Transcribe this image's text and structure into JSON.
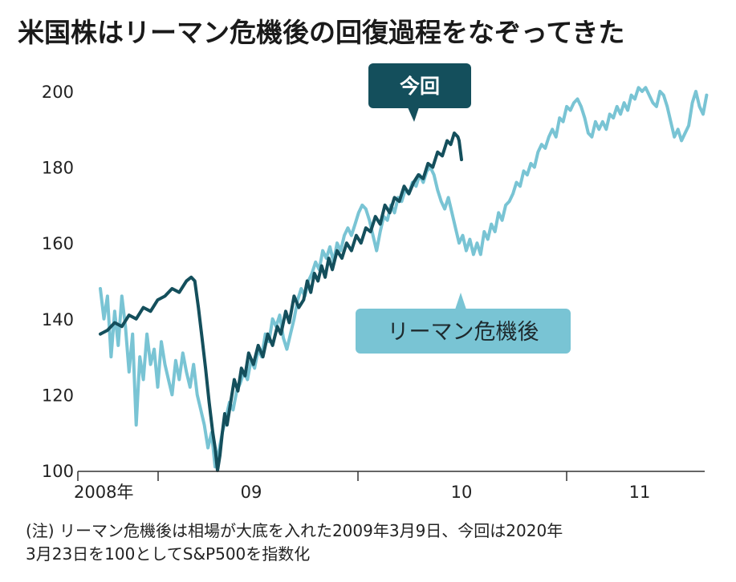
{
  "chart_data": {
    "type": "line",
    "title": "米国株はリーマン危機後の回復過程をなぞってきた",
    "x_tick_labels": [
      "2008年",
      "09",
      "10",
      "11"
    ],
    "y_ticks": [
      100,
      120,
      140,
      160,
      180,
      200
    ],
    "ylim": [
      100,
      205
    ],
    "x_domain_months": [
      0,
      39
    ],
    "grid": false,
    "series": [
      {
        "name": "今回",
        "color": "#144f5c",
        "points": [
          [
            0,
            136
          ],
          [
            0.6,
            137
          ],
          [
            1.2,
            139
          ],
          [
            1.8,
            138
          ],
          [
            2.4,
            141
          ],
          [
            3,
            140
          ],
          [
            3.6,
            143
          ],
          [
            4.2,
            142
          ],
          [
            4.8,
            145
          ],
          [
            5.4,
            146
          ],
          [
            6,
            148
          ],
          [
            6.6,
            147
          ],
          [
            7.2,
            150
          ],
          [
            7.6,
            151
          ],
          [
            7.9,
            150
          ],
          [
            8.2,
            143
          ],
          [
            8.5,
            135
          ],
          [
            8.8,
            127
          ],
          [
            9.1,
            118
          ],
          [
            9.4,
            110
          ],
          [
            9.6,
            106
          ],
          [
            9.8,
            100
          ],
          [
            10.0,
            104
          ],
          [
            10.2,
            110
          ],
          [
            10.4,
            115
          ],
          [
            10.6,
            112
          ],
          [
            10.9,
            118
          ],
          [
            11.2,
            124
          ],
          [
            11.5,
            121
          ],
          [
            11.8,
            127
          ],
          [
            12.1,
            125
          ],
          [
            12.4,
            131
          ],
          [
            12.8,
            128
          ],
          [
            13.2,
            133
          ],
          [
            13.6,
            130
          ],
          [
            14,
            136
          ],
          [
            14.4,
            133
          ],
          [
            14.8,
            138
          ],
          [
            15.1,
            136
          ],
          [
            15.5,
            142
          ],
          [
            15.8,
            139
          ],
          [
            16.2,
            146
          ],
          [
            16.6,
            143
          ],
          [
            17,
            145
          ],
          [
            17.3,
            150
          ],
          [
            17.6,
            147
          ],
          [
            17.9,
            152
          ],
          [
            18.2,
            150
          ],
          [
            18.5,
            154
          ],
          [
            18.8,
            151
          ],
          [
            19.1,
            156
          ],
          [
            19.4,
            153
          ],
          [
            19.8,
            158
          ],
          [
            20.2,
            156
          ],
          [
            20.6,
            160
          ],
          [
            21,
            158
          ],
          [
            21.4,
            162
          ],
          [
            21.8,
            160
          ],
          [
            22.2,
            164
          ],
          [
            22.6,
            163
          ],
          [
            23,
            167
          ],
          [
            23.4,
            165
          ],
          [
            23.8,
            170
          ],
          [
            24.2,
            168
          ],
          [
            24.6,
            172
          ],
          [
            25.0,
            171
          ],
          [
            25.4,
            175
          ],
          [
            25.8,
            173
          ],
          [
            26.2,
            176
          ],
          [
            26.6,
            178
          ],
          [
            27,
            177
          ],
          [
            27.4,
            181
          ],
          [
            27.8,
            180
          ],
          [
            28.2,
            184
          ],
          [
            28.6,
            183
          ],
          [
            29.0,
            187
          ],
          [
            29.3,
            186
          ],
          [
            29.6,
            189
          ],
          [
            29.9,
            188
          ],
          [
            30.0,
            187
          ],
          [
            30.2,
            182
          ]
        ]
      },
      {
        "name": "リーマン危機後",
        "color": "#79c4d4",
        "points": [
          [
            0,
            148
          ],
          [
            0.3,
            140
          ],
          [
            0.6,
            146
          ],
          [
            0.9,
            130
          ],
          [
            1.2,
            142
          ],
          [
            1.5,
            133
          ],
          [
            1.8,
            146
          ],
          [
            2.1,
            138
          ],
          [
            2.4,
            126
          ],
          [
            2.7,
            136
          ],
          [
            3.0,
            112
          ],
          [
            3.3,
            130
          ],
          [
            3.6,
            124
          ],
          [
            3.9,
            136
          ],
          [
            4.2,
            128
          ],
          [
            4.5,
            132
          ],
          [
            4.8,
            122
          ],
          [
            5.1,
            134
          ],
          [
            5.4,
            128
          ],
          [
            5.7,
            124
          ],
          [
            6.0,
            120
          ],
          [
            6.3,
            129
          ],
          [
            6.6,
            124
          ],
          [
            6.9,
            131
          ],
          [
            7.2,
            126
          ],
          [
            7.5,
            122
          ],
          [
            7.8,
            128
          ],
          [
            8.1,
            120
          ],
          [
            8.4,
            116
          ],
          [
            8.7,
            112
          ],
          [
            9.0,
            106
          ],
          [
            9.3,
            110
          ],
          [
            9.6,
            101
          ],
          [
            9.9,
            105
          ],
          [
            10.2,
            110
          ],
          [
            10.5,
            114
          ],
          [
            10.8,
            118
          ],
          [
            11.1,
            116
          ],
          [
            11.4,
            121
          ],
          [
            11.7,
            123
          ],
          [
            12.0,
            126
          ],
          [
            12.3,
            124
          ],
          [
            12.6,
            129
          ],
          [
            12.9,
            127
          ],
          [
            13.2,
            132
          ],
          [
            13.5,
            130
          ],
          [
            13.8,
            136
          ],
          [
            14.1,
            134
          ],
          [
            14.4,
            140
          ],
          [
            14.7,
            138
          ],
          [
            15.0,
            141
          ],
          [
            15.3,
            135
          ],
          [
            15.6,
            132
          ],
          [
            15.9,
            136
          ],
          [
            16.2,
            140
          ],
          [
            16.5,
            145
          ],
          [
            16.8,
            148
          ],
          [
            17.1,
            146
          ],
          [
            17.4,
            150
          ],
          [
            17.7,
            152
          ],
          [
            18.0,
            155
          ],
          [
            18.3,
            153
          ],
          [
            18.6,
            158
          ],
          [
            18.9,
            156
          ],
          [
            19.2,
            159
          ],
          [
            19.5,
            155
          ],
          [
            19.8,
            160
          ],
          [
            20.1,
            158
          ],
          [
            20.4,
            162
          ],
          [
            20.7,
            164
          ],
          [
            21.0,
            162
          ],
          [
            21.3,
            165
          ],
          [
            21.6,
            168
          ],
          [
            21.9,
            170
          ],
          [
            22.2,
            169
          ],
          [
            22.5,
            166
          ],
          [
            22.8,
            162
          ],
          [
            23.1,
            158
          ],
          [
            23.4,
            163
          ],
          [
            23.7,
            167
          ],
          [
            24.0,
            166
          ],
          [
            24.3,
            170
          ],
          [
            24.6,
            168
          ],
          [
            24.9,
            172
          ],
          [
            25.2,
            171
          ],
          [
            25.5,
            174
          ],
          [
            25.8,
            173
          ],
          [
            26.1,
            176
          ],
          [
            26.4,
            175
          ],
          [
            26.7,
            178
          ],
          [
            27.0,
            176
          ],
          [
            27.3,
            179
          ],
          [
            27.6,
            180
          ],
          [
            27.9,
            178
          ],
          [
            28.2,
            174
          ],
          [
            28.5,
            171
          ],
          [
            28.8,
            169
          ],
          [
            29.1,
            172
          ],
          [
            29.4,
            168
          ],
          [
            29.7,
            164
          ],
          [
            30.0,
            160
          ],
          [
            30.3,
            162
          ],
          [
            30.6,
            158
          ],
          [
            30.9,
            161
          ],
          [
            31.2,
            157
          ],
          [
            31.5,
            160
          ],
          [
            31.8,
            157
          ],
          [
            32.1,
            163
          ],
          [
            32.4,
            161
          ],
          [
            32.7,
            165
          ],
          [
            33.0,
            163
          ],
          [
            33.3,
            168
          ],
          [
            33.6,
            166
          ],
          [
            33.9,
            170
          ],
          [
            34.2,
            171
          ],
          [
            34.5,
            173
          ],
          [
            34.8,
            176
          ],
          [
            35.1,
            175
          ],
          [
            35.4,
            179
          ],
          [
            35.7,
            178
          ],
          [
            36.0,
            181
          ],
          [
            36.3,
            180
          ],
          [
            36.6,
            184
          ],
          [
            36.9,
            186
          ],
          [
            37.2,
            185
          ],
          [
            37.5,
            188
          ],
          [
            37.8,
            190
          ],
          [
            38.1,
            188
          ],
          [
            38.4,
            193
          ],
          [
            38.7,
            192
          ],
          [
            39.0,
            196
          ],
          [
            39.3,
            195
          ],
          [
            39.6,
            197
          ],
          [
            39.9,
            198
          ],
          [
            40.2,
            196
          ],
          [
            40.5,
            193
          ],
          [
            40.8,
            189
          ],
          [
            41.1,
            188
          ],
          [
            41.4,
            192
          ],
          [
            41.7,
            190
          ],
          [
            42.0,
            192
          ],
          [
            42.3,
            190
          ],
          [
            42.6,
            194
          ],
          [
            42.9,
            193
          ],
          [
            43.2,
            196
          ],
          [
            43.5,
            194
          ],
          [
            43.8,
            197
          ],
          [
            44.1,
            195
          ],
          [
            44.4,
            199
          ],
          [
            44.7,
            198
          ],
          [
            45.0,
            201
          ],
          [
            45.3,
            200
          ],
          [
            45.6,
            201
          ],
          [
            45.9,
            199
          ],
          [
            46.2,
            197
          ],
          [
            46.5,
            196
          ],
          [
            46.8,
            200
          ],
          [
            47.1,
            199
          ],
          [
            47.4,
            196
          ],
          [
            47.7,
            192
          ],
          [
            48.0,
            188
          ],
          [
            48.3,
            190
          ],
          [
            48.6,
            187
          ],
          [
            48.9,
            189
          ],
          [
            49.2,
            191
          ],
          [
            49.5,
            197
          ],
          [
            49.8,
            200
          ],
          [
            50.1,
            196
          ],
          [
            50.4,
            194
          ],
          [
            50.7,
            199
          ]
        ]
      }
    ],
    "annotations": [
      "今回",
      "リーマン危機後"
    ]
  },
  "note": {
    "line1": "(注) リーマン危機後は相場が大底を入れた2009年3月9日、今回は2020年",
    "line2": "3月23日を100としてS&P500を指数化"
  }
}
